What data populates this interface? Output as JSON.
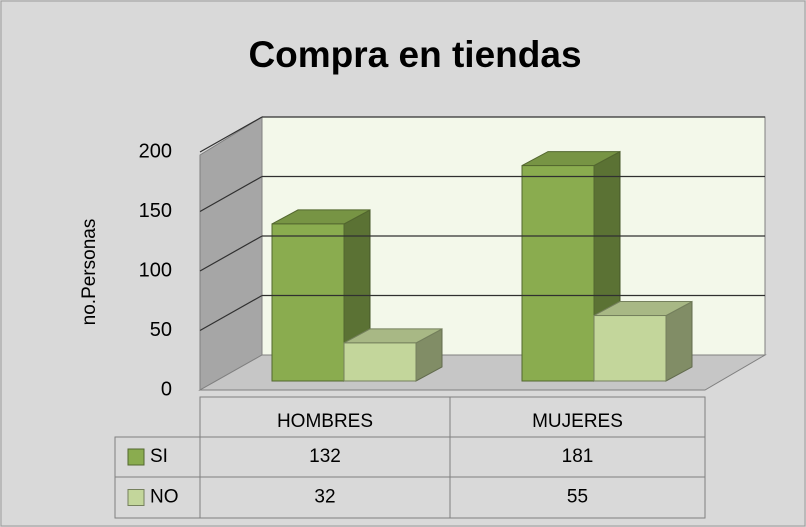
{
  "chart_data": {
    "type": "bar3d",
    "title": "Compra en tiendas",
    "y_label": "no.Personas",
    "categories": [
      "HOMBRES",
      "MUJERES"
    ],
    "series": [
      {
        "name": "SI",
        "color": "#8aac4f",
        "values": [
          132,
          181
        ]
      },
      {
        "name": "NO",
        "color": "#c3d69b",
        "values": [
          32,
          55
        ]
      }
    ],
    "ylim": [
      0,
      200
    ],
    "yticks": [
      0,
      50,
      100,
      150,
      200
    ],
    "grid": true,
    "data_table": true
  }
}
